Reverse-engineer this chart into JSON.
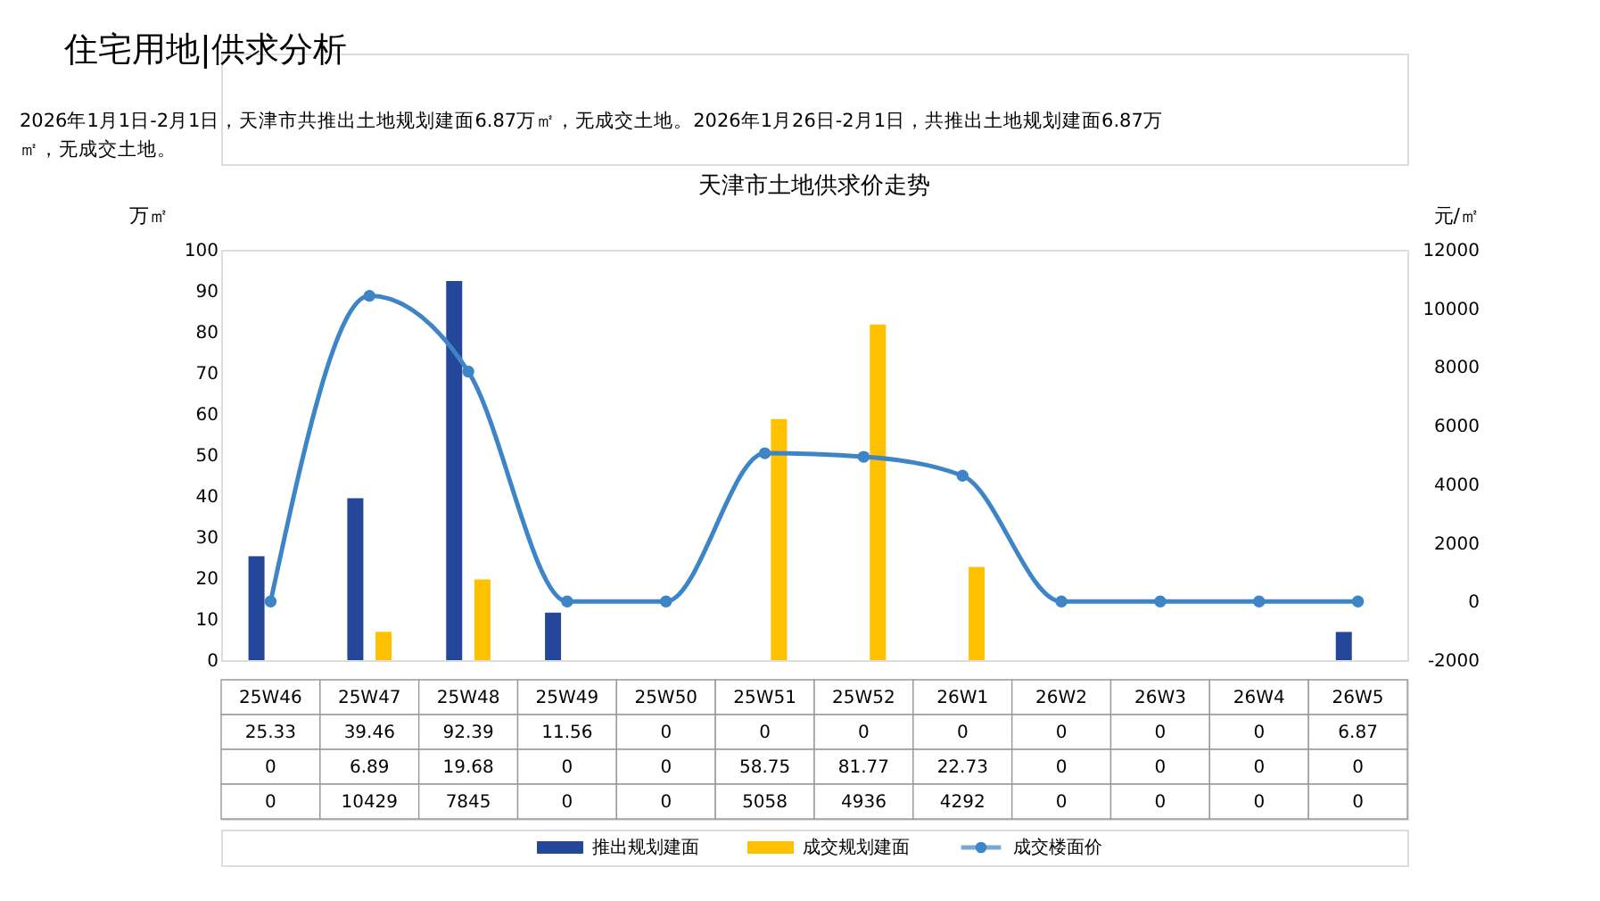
{
  "chart_data": {
    "type": "bar",
    "title": "天津市土地供求价走势",
    "annotations": [
      "住宅用地|供求分析",
      "2026年1月1日-2月1日，天津市共推出土地规划建面6.87万㎡，无成交土地。2026年1月26日-2月1日，共推出土地规划建面6.87万㎡，无成交土地。"
    ],
    "ylabel": "万㎡",
    "y2label": "元/㎡",
    "categories": [
      "25W46",
      "25W47",
      "25W48",
      "25W49",
      "25W50",
      "25W51",
      "25W52",
      "26W1",
      "26W2",
      "26W3",
      "26W4",
      "26W5"
    ],
    "series": [
      {
        "name": "推出规划建面",
        "color": "#24479a",
        "values": [
          25.33,
          39.46,
          92.39,
          11.56,
          0,
          0,
          0,
          0,
          0,
          0,
          0,
          6.87
        ]
      },
      {
        "name": "成交规划建面",
        "color": "#ffc000",
        "values": [
          0,
          6.89,
          19.68,
          0,
          0,
          58.75,
          81.77,
          22.73,
          0,
          0,
          0,
          0
        ]
      },
      {
        "name": "成交楼面价",
        "type": "line",
        "axis": "y2",
        "color": "#3d85c6",
        "marker": "circle",
        "values": [
          0,
          10429,
          7845,
          0,
          0,
          5058,
          4936,
          4292,
          0,
          0,
          0,
          0
        ]
      }
    ],
    "ylim": [
      0,
      100
    ],
    "yticks": [
      0,
      10,
      20,
      30,
      40,
      50,
      60,
      70,
      80,
      90,
      100
    ],
    "y2lim": [
      -2000,
      12000
    ],
    "y2ticks": [
      -2000,
      0,
      2000,
      4000,
      6000,
      8000,
      10000,
      12000
    ],
    "data_labels": true,
    "legend": "bottom",
    "grid": false
  }
}
